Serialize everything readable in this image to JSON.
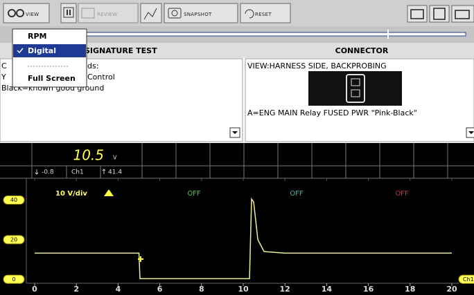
{
  "toolbar": {
    "view": "VIEW",
    "review": "REVIEW",
    "snapshot": "SNAPSHOT",
    "reset": "RESET"
  },
  "menu": {
    "items": [
      "RPM",
      "Digital",
      "Full Screen"
    ]
  },
  "headers": {
    "left": "SIGNATURE TEST",
    "right": "CONNECTOR"
  },
  "left_panel": {
    "lines": [
      [
        "C",
        "ds:"
      ],
      [
        "Y",
        "Control"
      ],
      [
        "Black=known good ground"
      ]
    ]
  },
  "right_panel": {
    "view": "VIEW:HARNESS SIDE, BACKPROBING",
    "pin": "A=ENG MAIN Relay FUSED PWR \"Pink-Black\""
  },
  "readout": {
    "value": "10.5",
    "unit": "V",
    "min": "-0.8",
    "channel": "Ch1",
    "max": "41.4"
  },
  "chart_data": {
    "type": "line",
    "scale_label": "10 V/div",
    "status": [
      "OFF",
      "OFF",
      "OFF"
    ],
    "channel_tag": "Ch1",
    "series": [
      {
        "name": "Ch1",
        "color": "#eeee99",
        "x": [
          0,
          5,
          5.05,
          10.3,
          10.4,
          10.5,
          10.7,
          11,
          12,
          20
        ],
        "values": [
          13.2,
          13.2,
          0.3,
          0.3,
          40.5,
          39,
          20,
          14,
          13.2,
          13.2
        ]
      }
    ],
    "xlim": [
      0,
      20
    ],
    "xticks": [
      0,
      2,
      4,
      6,
      8,
      10,
      12,
      14,
      16,
      18,
      20
    ],
    "ylim": [
      -2,
      51
    ],
    "yticks": [
      0,
      20,
      40
    ]
  }
}
